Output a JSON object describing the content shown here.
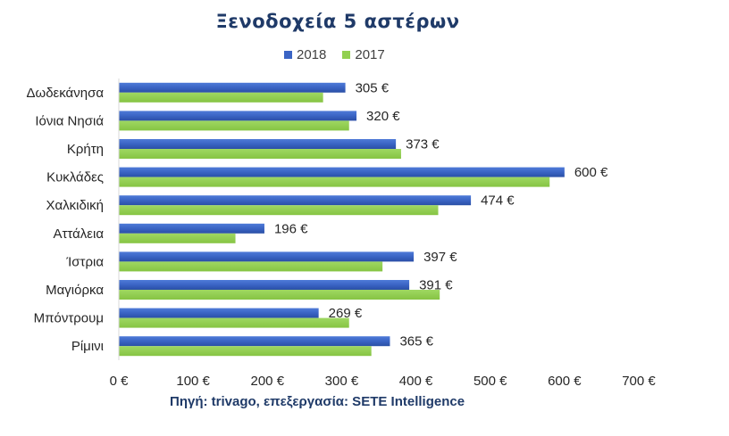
{
  "chart_data": {
    "type": "bar",
    "orientation": "horizontal",
    "title": "Ξενοδοχεία 5 αστέρων",
    "categories": [
      "Δωδεκάνησα",
      "Ιόνια Νησιά",
      "Κρήτη",
      "Κυκλάδες",
      "Χαλκιδική",
      "Αττάλεια",
      "Ίστρια",
      "Μαγιόρκα",
      "Μπόντρουμ",
      "Ρίμινι"
    ],
    "series": [
      {
        "name": "2018",
        "color": "#3a64c4",
        "values": [
          305,
          320,
          373,
          600,
          474,
          196,
          397,
          391,
          269,
          365
        ],
        "data_labels": [
          "305 €",
          "320 €",
          "373 €",
          "600 €",
          "474 €",
          "196 €",
          "397 €",
          "391 €",
          "269 €",
          "365 €"
        ]
      },
      {
        "name": "2017",
        "color": "#92d050",
        "values": [
          275,
          310,
          380,
          580,
          430,
          157,
          355,
          432,
          310,
          340
        ]
      }
    ],
    "xlim": [
      0,
      700
    ],
    "xticks": [
      0,
      100,
      200,
      300,
      400,
      500,
      600,
      700
    ],
    "xtick_labels": [
      "0 €",
      "100 €",
      "200 €",
      "300 €",
      "400 €",
      "500 €",
      "600 €",
      "700 €"
    ],
    "xlabel": "",
    "ylabel": "",
    "grid": false,
    "legend_position": "top"
  },
  "source_note": "Πηγή: trivago, επεξεργασία: SETE Intelligence"
}
